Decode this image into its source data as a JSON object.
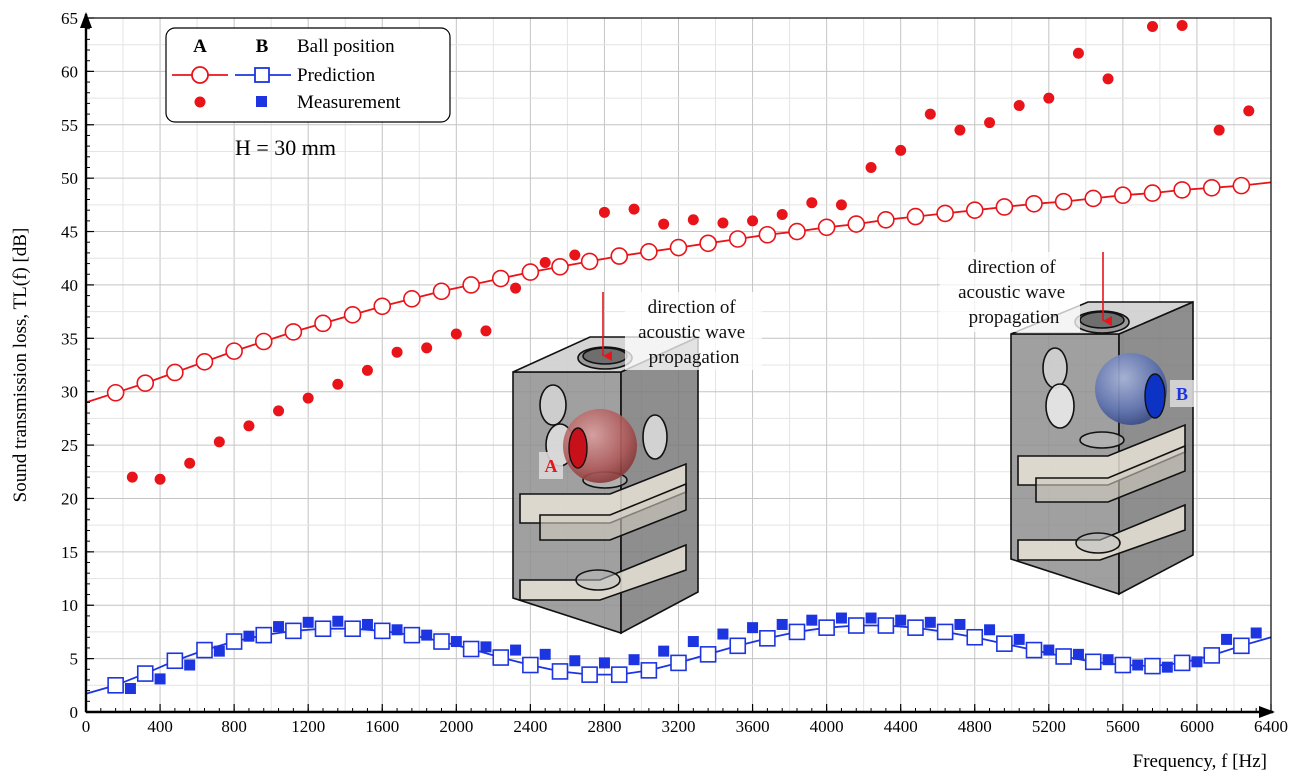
{
  "chart_data": {
    "type": "line",
    "title": "",
    "xlabel": "Frequency, f [Hz]",
    "ylabel": "Sound transmission loss, TL(f) [dB]",
    "xlim": [
      0,
      6400
    ],
    "ylim": [
      0,
      65
    ],
    "xticks": [
      0,
      400,
      800,
      1200,
      1600,
      2000,
      2400,
      2800,
      3200,
      3600,
      4000,
      4400,
      4800,
      5200,
      5600,
      6000,
      6400
    ],
    "yticks": [
      0,
      5,
      10,
      15,
      20,
      25,
      30,
      35,
      40,
      45,
      50,
      55,
      60,
      65
    ],
    "grid": true,
    "legend": {
      "placement": "top-left",
      "col_a": "A",
      "col_b": "B",
      "row_header": "Ball position",
      "row_prediction": "Prediction",
      "row_measurement": "Measurement"
    },
    "annotation": "H = 30 mm",
    "series": [
      {
        "name": "A Prediction",
        "kind": "line-marker",
        "marker": "circle",
        "color": "#e8141a",
        "x": [
          0,
          160,
          320,
          480,
          640,
          800,
          960,
          1120,
          1280,
          1440,
          1600,
          1760,
          1920,
          2080,
          2240,
          2400,
          2560,
          2720,
          2880,
          3040,
          3200,
          3360,
          3520,
          3680,
          3840,
          4000,
          4160,
          4320,
          4480,
          4640,
          4800,
          4960,
          5120,
          5280,
          5440,
          5600,
          5760,
          5920,
          6080,
          6240,
          6400
        ],
        "y": [
          29.0,
          29.9,
          30.8,
          31.8,
          32.8,
          33.8,
          34.7,
          35.6,
          36.4,
          37.2,
          38.0,
          38.7,
          39.4,
          40.0,
          40.6,
          41.2,
          41.7,
          42.2,
          42.7,
          43.1,
          43.5,
          43.9,
          44.3,
          44.7,
          45.0,
          45.4,
          45.7,
          46.1,
          46.4,
          46.7,
          47.0,
          47.3,
          47.6,
          47.8,
          48.1,
          48.4,
          48.6,
          48.9,
          49.1,
          49.3,
          49.6
        ],
        "marker_x": [
          160,
          320,
          480,
          640,
          800,
          960,
          1120,
          1280,
          1440,
          1600,
          1760,
          1920,
          2080,
          2240,
          2400,
          2560,
          2720,
          2880,
          3040,
          3200,
          3360,
          3520,
          3680,
          3840,
          4000,
          4160,
          4320,
          4480,
          4640,
          4800,
          4960,
          5120,
          5280,
          5440,
          5600,
          5760,
          5920,
          6080,
          6240
        ],
        "marker_y": [
          29.9,
          30.8,
          31.8,
          32.8,
          33.8,
          34.7,
          35.6,
          36.4,
          37.2,
          38.0,
          38.7,
          39.4,
          40.0,
          40.6,
          41.2,
          41.7,
          42.2,
          42.7,
          43.1,
          43.5,
          43.9,
          44.3,
          44.7,
          45.0,
          45.4,
          45.7,
          46.1,
          46.4,
          46.7,
          47.0,
          47.3,
          47.6,
          47.8,
          48.1,
          48.4,
          48.6,
          48.9,
          49.1,
          49.3
        ]
      },
      {
        "name": "A Measurement",
        "kind": "scatter",
        "marker": "dot",
        "color": "#e8141a",
        "x": [
          250,
          400,
          560,
          720,
          880,
          1040,
          1200,
          1360,
          1520,
          1680,
          1840,
          2000,
          2160,
          2320,
          2480,
          2640,
          2800,
          2960,
          3120,
          3280,
          3440,
          3600,
          3760,
          3920,
          4080,
          4240,
          4400,
          4560,
          4720,
          4880,
          5040,
          5200,
          5360,
          5520,
          5760,
          5920,
          6120,
          6280
        ],
        "y": [
          22.0,
          21.8,
          23.3,
          25.3,
          26.8,
          28.2,
          29.4,
          30.7,
          32.0,
          33.7,
          34.1,
          35.4,
          35.7,
          39.7,
          42.1,
          42.8,
          46.8,
          47.1,
          45.7,
          46.1,
          45.8,
          46.0,
          46.6,
          47.7,
          47.5,
          51.0,
          52.6,
          56.0,
          54.5,
          55.2,
          56.8,
          57.5,
          61.7,
          59.3,
          64.2,
          64.3,
          54.5,
          56.3
        ]
      },
      {
        "name": "B Prediction",
        "kind": "line-marker",
        "marker": "square",
        "color": "#1d35e0",
        "x": [
          0,
          160,
          320,
          480,
          640,
          800,
          960,
          1120,
          1280,
          1440,
          1600,
          1760,
          1920,
          2080,
          2240,
          2400,
          2560,
          2720,
          2880,
          3040,
          3200,
          3360,
          3520,
          3680,
          3840,
          4000,
          4160,
          4320,
          4480,
          4640,
          4800,
          4960,
          5120,
          5280,
          5440,
          5600,
          5760,
          5920,
          6080,
          6240,
          6400
        ],
        "y": [
          1.7,
          2.5,
          3.6,
          4.8,
          5.8,
          6.6,
          7.2,
          7.6,
          7.8,
          7.8,
          7.6,
          7.2,
          6.6,
          5.9,
          5.1,
          4.4,
          3.8,
          3.5,
          3.5,
          3.9,
          4.6,
          5.4,
          6.2,
          6.9,
          7.5,
          7.9,
          8.1,
          8.1,
          7.9,
          7.5,
          7.0,
          6.4,
          5.8,
          5.2,
          4.7,
          4.4,
          4.3,
          4.6,
          5.3,
          6.2,
          7.0
        ],
        "marker_x": [
          160,
          320,
          480,
          640,
          800,
          960,
          1120,
          1280,
          1440,
          1600,
          1760,
          1920,
          2080,
          2240,
          2400,
          2560,
          2720,
          2880,
          3040,
          3200,
          3360,
          3520,
          3680,
          3840,
          4000,
          4160,
          4320,
          4480,
          4640,
          4800,
          4960,
          5120,
          5280,
          5440,
          5600,
          5760,
          5920,
          6080,
          6240
        ],
        "marker_y": [
          2.5,
          3.6,
          4.8,
          5.8,
          6.6,
          7.2,
          7.6,
          7.8,
          7.8,
          7.6,
          7.2,
          6.6,
          5.9,
          5.1,
          4.4,
          3.8,
          3.5,
          3.5,
          3.9,
          4.6,
          5.4,
          6.2,
          6.9,
          7.5,
          7.9,
          8.1,
          8.1,
          7.9,
          7.5,
          7.0,
          6.4,
          5.8,
          5.2,
          4.7,
          4.4,
          4.3,
          4.6,
          5.3,
          6.2
        ]
      },
      {
        "name": "B Measurement",
        "kind": "scatter",
        "marker": "filled-square",
        "color": "#1d35e0",
        "x": [
          240,
          400,
          560,
          720,
          880,
          1040,
          1200,
          1360,
          1520,
          1680,
          1840,
          2000,
          2160,
          2320,
          2480,
          2640,
          2800,
          2960,
          3120,
          3280,
          3440,
          3600,
          3760,
          3920,
          4080,
          4240,
          4400,
          4560,
          4720,
          4880,
          5040,
          5200,
          5360,
          5520,
          5680,
          5840,
          6000,
          6160,
          6320
        ],
        "y": [
          2.2,
          3.1,
          4.4,
          5.7,
          7.1,
          8.0,
          8.4,
          8.5,
          8.2,
          7.7,
          7.2,
          6.6,
          6.1,
          5.8,
          5.4,
          4.8,
          4.6,
          4.9,
          5.7,
          6.6,
          7.3,
          7.9,
          8.2,
          8.6,
          8.8,
          8.8,
          8.6,
          8.4,
          8.2,
          7.7,
          6.8,
          5.8,
          5.4,
          4.9,
          4.4,
          4.2,
          4.7,
          6.8,
          7.4
        ]
      }
    ],
    "insets": [
      {
        "ball_label": "A",
        "caption_line1": "direction of",
        "caption_line2": "acoustic wave",
        "caption_line3": "propagation"
      },
      {
        "ball_label": "B",
        "caption_line1": "direction of",
        "caption_line2": "acoustic wave",
        "caption_line3": "propagation"
      }
    ]
  }
}
